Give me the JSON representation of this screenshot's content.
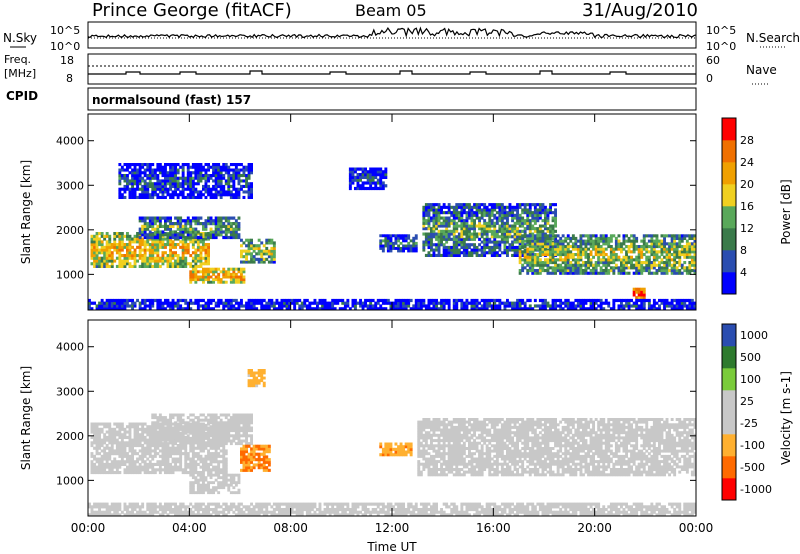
{
  "header": {
    "station": "Prince George (fitACF)",
    "beam": "Beam 05",
    "date": "31/Aug/2010",
    "cpid_label": "CPID",
    "cpid_value": "normalsound (fast) 157"
  },
  "panels": {
    "nsky": {
      "label": "N.Sky",
      "tick_top": "10^5",
      "tick_bottom": "10^0",
      "right_tick_top": "10^5",
      "right_tick_bottom": "10^0",
      "right_label": "N.Search"
    },
    "freq": {
      "label_line1": "Freq.",
      "label_line2": "[MHz]",
      "tick_top": "18",
      "tick_bottom": "8",
      "right_tick_top": "60",
      "right_tick_bottom": "0",
      "right_label": "Nave"
    }
  },
  "colors": {
    "power_bar": [
      "#0000ff",
      "#2a4db0",
      "#3a7a4a",
      "#59a85a",
      "#f0d020",
      "#f0a000",
      "#f07000",
      "#ff0000"
    ],
    "velocity_bar": [
      "#ff0000",
      "#ff6a00",
      "#ffb030",
      "#c8c8c8",
      "#c8c8c8",
      "#7acb3a",
      "#2e7a2e",
      "#2a4db0"
    ]
  },
  "chart_data": [
    {
      "type": "heatmap",
      "ylabel": "Slant Range [km]",
      "xlabel": "Time UT",
      "x_ticks": [
        "00:00",
        "04:00",
        "08:00",
        "12:00",
        "16:00",
        "20:00",
        "00:00"
      ],
      "y_ticks": [
        "1000",
        "2000",
        "3000",
        "4000"
      ],
      "ylim": [
        200,
        4600
      ],
      "xlim_hours": [
        0,
        24
      ],
      "colorbar": {
        "label": "Power [dB]",
        "ticks": [
          "4",
          "8",
          "12",
          "16",
          "20",
          "24",
          "28"
        ],
        "range": [
          0,
          30
        ]
      },
      "echo_regions": [
        {
          "t0": 0.1,
          "t1": 4.8,
          "r0": 1150,
          "r1": 1950,
          "level": 20
        },
        {
          "t0": 2.0,
          "t1": 6.0,
          "r0": 1800,
          "r1": 2300,
          "level": 12
        },
        {
          "t0": 4.0,
          "t1": 6.2,
          "r0": 800,
          "r1": 1150,
          "level": 22
        },
        {
          "t0": 6.0,
          "t1": 7.4,
          "r0": 1250,
          "r1": 1800,
          "level": 16
        },
        {
          "t0": 1.2,
          "t1": 6.5,
          "r0": 2700,
          "r1": 3500,
          "level": 7
        },
        {
          "t0": 10.3,
          "t1": 11.8,
          "r0": 2900,
          "r1": 3400,
          "level": 6
        },
        {
          "t0": 11.5,
          "t1": 13.0,
          "r0": 1500,
          "r1": 1900,
          "level": 9
        },
        {
          "t0": 13.2,
          "t1": 18.5,
          "r0": 1400,
          "r1": 2600,
          "level": 12
        },
        {
          "t0": 17.0,
          "t1": 24.0,
          "r0": 1000,
          "r1": 1900,
          "level": 16
        },
        {
          "t0": 21.5,
          "t1": 22.0,
          "r0": 450,
          "r1": 700,
          "level": 28
        },
        {
          "t0": 0.0,
          "t1": 24.0,
          "r0": 200,
          "r1": 450,
          "level": 5
        }
      ]
    },
    {
      "type": "heatmap",
      "ylabel": "Slant Range [km]",
      "xlabel": "Time UT",
      "x_ticks": [
        "00:00",
        "04:00",
        "08:00",
        "12:00",
        "16:00",
        "20:00",
        "00:00"
      ],
      "y_ticks": [
        "1000",
        "2000",
        "3000",
        "4000"
      ],
      "ylim": [
        200,
        4600
      ],
      "xlim_hours": [
        0,
        24
      ],
      "colorbar": {
        "label": "Velocity [m s-1]",
        "ticks": [
          "-1000",
          "-500",
          "-100",
          "-25",
          "25",
          "100",
          "500",
          "1000"
        ],
        "range": [
          -1200,
          1200
        ]
      },
      "echo_regions": [
        {
          "t0": 0.1,
          "t1": 5.5,
          "r0": 1150,
          "r1": 2300,
          "level": 0
        },
        {
          "t0": 2.5,
          "t1": 6.5,
          "r0": 1800,
          "r1": 2500,
          "level": 0
        },
        {
          "t0": 6.0,
          "t1": 7.2,
          "r0": 1200,
          "r1": 1800,
          "level": -600
        },
        {
          "t0": 4.0,
          "t1": 6.0,
          "r0": 700,
          "r1": 1150,
          "level": 150
        },
        {
          "t0": 6.3,
          "t1": 7.0,
          "r0": 3100,
          "r1": 3500,
          "level": -400
        },
        {
          "t0": 11.5,
          "t1": 12.8,
          "r0": 1550,
          "r1": 1850,
          "level": -500
        },
        {
          "t0": 13.0,
          "t1": 24.0,
          "r0": 1100,
          "r1": 2400,
          "level": 0
        },
        {
          "t0": 0.0,
          "t1": 24.0,
          "r0": 200,
          "r1": 500,
          "level": -80
        }
      ]
    }
  ]
}
